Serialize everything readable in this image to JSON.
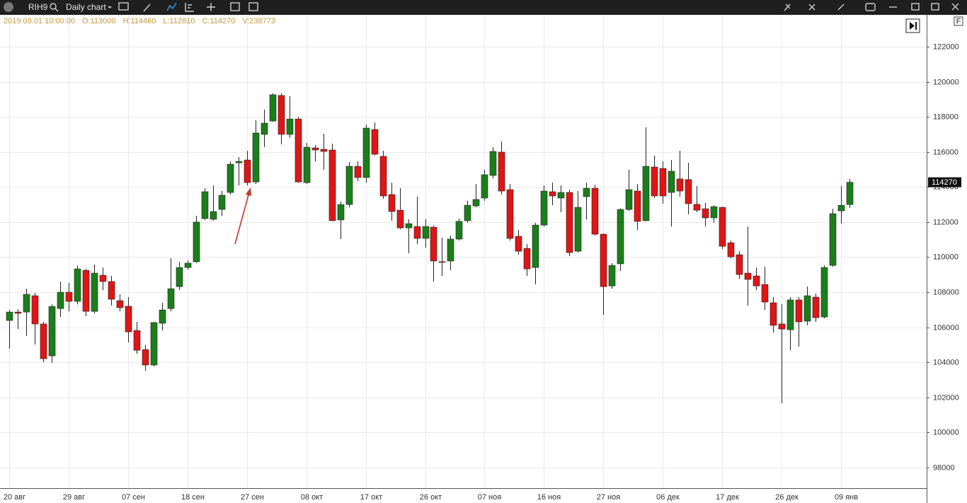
{
  "toolbar": {
    "symbol": "RIH9",
    "timeframe": "Daily chart"
  },
  "chart_data": {
    "type": "candlestick",
    "info": [
      "2019.09.01 10:00:00",
      "O:113000",
      "H:114460",
      "L:112810",
      "C:114270",
      "V:238773"
    ],
    "categories": [
      "20 авг",
      null,
      null,
      null,
      null,
      null,
      null,
      "29 авг",
      null,
      null,
      null,
      null,
      null,
      null,
      "07 сен",
      null,
      null,
      null,
      null,
      null,
      null,
      "18 сен",
      null,
      null,
      null,
      null,
      null,
      null,
      "27 сен",
      null,
      null,
      null,
      null,
      null,
      null,
      "08 окт",
      null,
      null,
      null,
      null,
      null,
      null,
      "17 окт",
      null,
      null,
      null,
      null,
      null,
      null,
      "26 окт",
      null,
      null,
      null,
      null,
      null,
      null,
      "07 ноя",
      null,
      null,
      null,
      null,
      null,
      null,
      "16 ноя",
      null,
      null,
      null,
      null,
      null,
      null,
      "27 ноя",
      null,
      null,
      null,
      null,
      null,
      null,
      "06 дек",
      null,
      null,
      null,
      null,
      null,
      null,
      "17 дек",
      null,
      null,
      null,
      null,
      null,
      null,
      "26 дек",
      null,
      null,
      null,
      null,
      null,
      null,
      "09 янв",
      null
    ],
    "open": [
      106390,
      106870,
      106870,
      107800,
      106190,
      104370,
      107070,
      108000,
      107480,
      109250,
      106910,
      108970,
      108610,
      107520,
      107200,
      105820,
      104730,
      103850,
      106230,
      107070,
      108320,
      109410,
      109740,
      112200,
      112160,
      112720,
      113690,
      115380,
      115540,
      114290,
      117000,
      117760,
      119220,
      117000,
      117880,
      114250,
      116230,
      116150,
      116110,
      112120,
      113000,
      115180,
      114540,
      117280,
      115750,
      113570,
      112680,
      111670,
      111750,
      111070,
      111710,
      109740,
      109780,
      111030,
      112080,
      112920,
      113370,
      114660,
      115990,
      113850,
      111190,
      110500,
      109410,
      111830,
      113730,
      113370,
      113690,
      110340,
      113450,
      113930,
      111310,
      108360,
      109620,
      112720,
      113770,
      112080,
      115140,
      115060,
      113690,
      114460,
      114420,
      113010,
      112760,
      112240,
      112840,
      110820,
      110140,
      109090,
      108930,
      108440,
      107400,
      106190,
      105860,
      107560,
      106350,
      107720,
      106590,
      109530,
      112640,
      113000
    ],
    "high": [
      106990,
      107030,
      108200,
      107960,
      106310,
      107310,
      108610,
      108530,
      109530,
      109330,
      109570,
      109410,
      108930,
      107880,
      107720,
      106310,
      104980,
      106310,
      107400,
      109940,
      109740,
      109820,
      112360,
      113930,
      114090,
      113770,
      115460,
      115710,
      116060,
      117800,
      118410,
      119340,
      119340,
      119180,
      118010,
      116510,
      116390,
      117040,
      116470,
      113170,
      115420,
      115460,
      117560,
      117680,
      116070,
      114250,
      113930,
      112160,
      113450,
      112160,
      111790,
      111110,
      111230,
      112200,
      113210,
      114170,
      114980,
      116270,
      116590,
      114170,
      111550,
      110750,
      111950,
      114090,
      114250,
      114090,
      113850,
      113770,
      114250,
      114130,
      111350,
      109660,
      112800,
      114980,
      114170,
      117400,
      115790,
      115460,
      115540,
      116070,
      115380,
      114050,
      113090,
      112960,
      112880,
      110950,
      110340,
      111750,
      109410,
      109450,
      107720,
      107320,
      107720,
      107720,
      108320,
      107920,
      109530,
      112760,
      114050,
      114460
    ],
    "low": [
      104780,
      105900,
      105500,
      105020,
      104010,
      103970,
      106590,
      106910,
      107310,
      106630,
      106790,
      108120,
      107240,
      106910,
      105140,
      104490,
      103520,
      103770,
      105820,
      106910,
      108120,
      109290,
      109660,
      112120,
      112080,
      112360,
      113570,
      114090,
      114090,
      114170,
      116270,
      117720,
      116430,
      116800,
      114250,
      114170,
      115460,
      114980,
      112040,
      111030,
      112840,
      114330,
      114250,
      115790,
      113330,
      112080,
      111590,
      110220,
      110740,
      110540,
      108610,
      108930,
      109250,
      110950,
      111960,
      112840,
      113210,
      114500,
      113570,
      110950,
      110140,
      108930,
      108450,
      111750,
      112960,
      112560,
      110060,
      110260,
      112160,
      111230,
      106710,
      108200,
      109210,
      112640,
      111550,
      112040,
      113370,
      113050,
      111750,
      113450,
      112440,
      112560,
      111750,
      111960,
      110460,
      109940,
      108770,
      107240,
      108120,
      106990,
      105700,
      101670,
      104690,
      104900,
      106110,
      106310,
      106510,
      109450,
      111910,
      112810
    ],
    "close": [
      106870,
      106800,
      107880,
      106190,
      104210,
      107190,
      108000,
      107480,
      109330,
      106910,
      109090,
      108610,
      107600,
      107120,
      105740,
      104690,
      103850,
      106270,
      106990,
      108200,
      109410,
      109660,
      112000,
      113730,
      112600,
      113530,
      115300,
      115460,
      114250,
      117080,
      117640,
      119260,
      117000,
      117880,
      114290,
      116270,
      116110,
      116030,
      112080,
      113000,
      115180,
      114540,
      117360,
      115870,
      113490,
      112600,
      111670,
      111910,
      111070,
      111750,
      109780,
      109700,
      111030,
      112040,
      112960,
      113290,
      114700,
      116030,
      113770,
      111070,
      110340,
      109330,
      111830,
      113770,
      113490,
      113690,
      110260,
      112840,
      113930,
      111310,
      108320,
      109530,
      112720,
      113850,
      112040,
      115180,
      113490,
      113490,
      114900,
      113770,
      113050,
      112680,
      112240,
      112880,
      110620,
      110020,
      109010,
      108730,
      108360,
      107440,
      106110,
      105900,
      107560,
      106310,
      107800,
      106550,
      109410,
      112480,
      112960,
      114270
    ],
    "up_color": "#1a7f1a",
    "down_color": "#e01515",
    "ylim": [
      96830,
      123775
    ],
    "yticks": [
      98000,
      100000,
      102000,
      104000,
      106000,
      108000,
      110000,
      112000,
      114000,
      116000,
      118000,
      120000,
      122000
    ],
    "grid": true,
    "last_price": 114270
  }
}
